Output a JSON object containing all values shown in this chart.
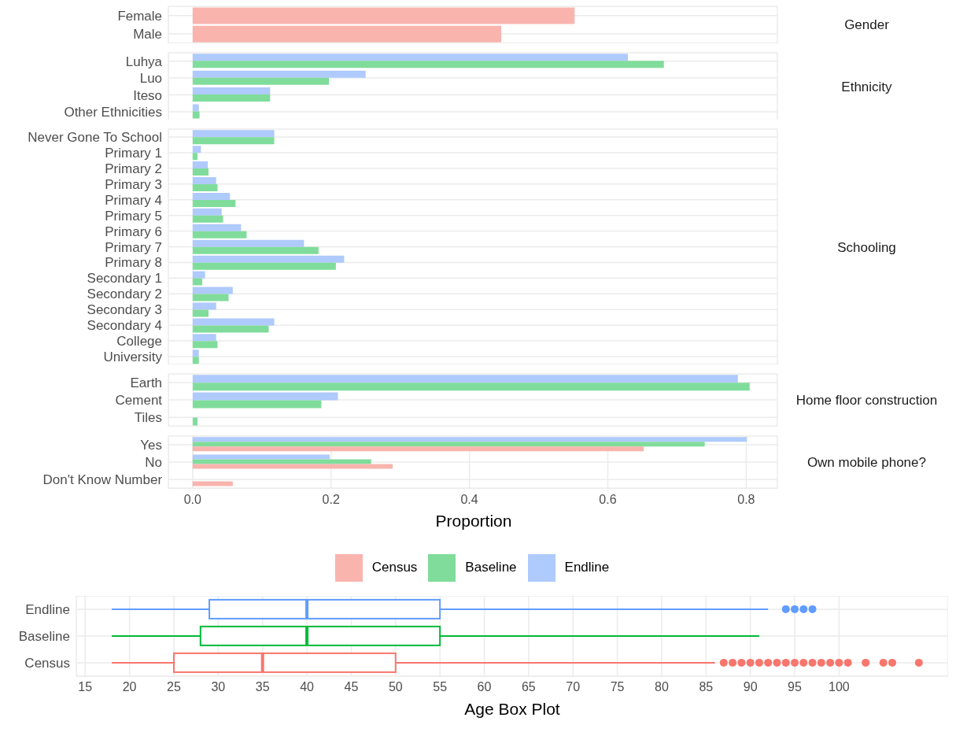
{
  "chart_data": [
    {
      "type": "bar",
      "orientation": "horizontal",
      "annotations": [
        "Gender"
      ],
      "categories": [
        "Female",
        "Male"
      ],
      "series": [
        {
          "color": "#f9b4ae",
          "values": [
            0.552,
            0.446
          ]
        }
      ],
      "xlim": [
        -0.035,
        0.845
      ],
      "xticks": [
        0,
        0.2,
        0.4,
        0.6,
        0.8
      ],
      "grid": true,
      "tick_labels": "y"
    },
    {
      "type": "bar",
      "orientation": "horizontal",
      "annotations": [
        "Ethnicity"
      ],
      "categories": [
        "Luhya",
        "Luo",
        "Iteso",
        "Other Ethnicities"
      ],
      "series": [
        {
          "color": "#80dc9b",
          "values": [
            0.681,
            0.197,
            0.112,
            0.01
          ]
        },
        {
          "color": "#afcafc",
          "values": [
            0.629,
            0.25,
            0.112,
            0.009
          ]
        }
      ],
      "xlim": [
        -0.035,
        0.845
      ],
      "xticks": [
        0,
        0.2,
        0.4,
        0.6,
        0.8
      ],
      "grid": true,
      "tick_labels": "y"
    },
    {
      "type": "bar",
      "orientation": "horizontal",
      "annotations": [
        "Schooling"
      ],
      "categories": [
        "Never Gone To School",
        "Primary 1",
        "Primary 2",
        "Primary 3",
        "Primary 4",
        "Primary 5",
        "Primary 6",
        "Primary 7",
        "Primary 8",
        "Secondary 1",
        "Secondary 2",
        "Secondary 3",
        "Secondary 4",
        "College",
        "University"
      ],
      "series": [
        {
          "color": "#80dc9b",
          "values": [
            0.118,
            0.007,
            0.023,
            0.036,
            0.062,
            0.044,
            0.078,
            0.182,
            0.207,
            0.014,
            0.052,
            0.023,
            0.11,
            0.036,
            0.009
          ]
        },
        {
          "color": "#afcafc",
          "values": [
            0.118,
            0.012,
            0.022,
            0.034,
            0.054,
            0.042,
            0.07,
            0.161,
            0.219,
            0.018,
            0.058,
            0.034,
            0.118,
            0.034,
            0.009
          ]
        }
      ],
      "xlim": [
        -0.035,
        0.845
      ],
      "xticks": [
        0,
        0.2,
        0.4,
        0.6,
        0.8
      ],
      "grid": true,
      "tick_labels": "y"
    },
    {
      "type": "bar",
      "orientation": "horizontal",
      "annotations": [
        "Home floor construction"
      ],
      "categories": [
        "Earth",
        "Cement",
        "Tiles"
      ],
      "series": [
        {
          "color": "#80dc9b",
          "values": [
            0.805,
            0.186,
            0.007
          ]
        },
        {
          "color": "#afcafc",
          "values": [
            0.788,
            0.21,
            null
          ]
        }
      ],
      "xlim": [
        -0.035,
        0.845
      ],
      "xticks": [
        0,
        0.2,
        0.4,
        0.6,
        0.8
      ],
      "grid": true,
      "tick_labels": "y"
    },
    {
      "type": "bar",
      "orientation": "horizontal",
      "annotations": [
        "Own mobile phone?"
      ],
      "xlabel": "Proportion",
      "categories": [
        "Yes",
        "No",
        "Don't Know Number"
      ],
      "series": [
        {
          "name": "Census",
          "color": "#f9b4ae",
          "values": [
            0.652,
            0.289,
            0.058
          ]
        },
        {
          "name": "Baseline",
          "color": "#80dc9b",
          "values": [
            0.74,
            0.258,
            null
          ]
        },
        {
          "name": "Endline",
          "color": "#afcafc",
          "values": [
            0.801,
            0.198,
            null
          ]
        }
      ],
      "xlim": [
        -0.035,
        0.845
      ],
      "xticks": [
        {
          "value": 0,
          "label": "0.0"
        },
        0.2,
        0.4,
        0.6,
        0.8
      ],
      "grid": true,
      "legend": "bottom"
    },
    {
      "type": "box",
      "orientation": "horizontal",
      "xlabel": "Age Box Plot",
      "categories": [
        "Endline",
        "Baseline",
        "Census"
      ],
      "colors": [
        "#619cff",
        "#00ba38",
        "#f8766d"
      ],
      "boxes": [
        {
          "low": 18,
          "q1": 29,
          "median": 40,
          "q3": 55,
          "high": 92,
          "outliers": [
            94,
            95,
            96,
            97
          ]
        },
        {
          "low": 18,
          "q1": 28,
          "median": 40,
          "q3": 55,
          "high": 91
        },
        {
          "low": 18,
          "q1": 25,
          "median": 35,
          "q3": 50,
          "high": 86,
          "outliers": [
            87,
            88,
            89,
            90,
            91,
            92,
            93,
            94,
            95,
            96,
            97,
            98,
            99,
            100,
            101,
            103,
            105,
            106,
            109
          ]
        }
      ],
      "xlim": [
        14,
        112.3
      ],
      "xticks": [
        15,
        20,
        25,
        30,
        35,
        40,
        45,
        50,
        55,
        60,
        65,
        70,
        75,
        80,
        85,
        90,
        95,
        100
      ],
      "grid": true
    }
  ]
}
